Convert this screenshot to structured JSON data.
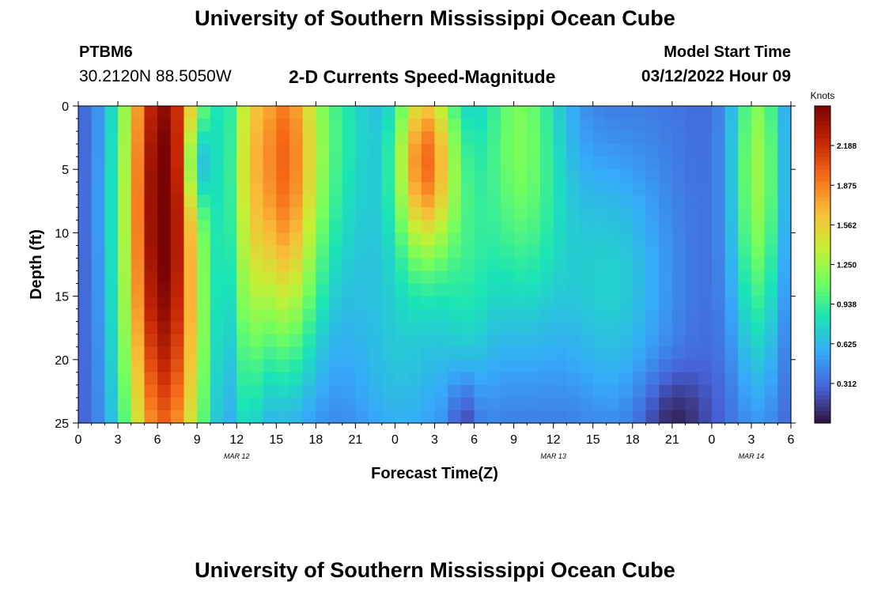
{
  "header": {
    "title": "University of Southern Mississippi Ocean Cube",
    "station_id": "PTBM6",
    "coordinates": "30.2120N  88.5050W",
    "subtitle": "2-D Currents Speed-Magnitude",
    "model_start_label": "Model Start Time",
    "model_start_value": "03/12/2022 Hour 09"
  },
  "footer": {
    "title": "University of Southern Mississippi Ocean Cube"
  },
  "chart_data": {
    "type": "heatmap",
    "title": "2-D Currents Speed-Magnitude",
    "xlabel": "Forecast Time(Z)",
    "ylabel": "Depth (ft)",
    "xlim": [
      0,
      54
    ],
    "ylim": [
      0,
      25
    ],
    "y_inverted": true,
    "x_ticks": [
      0,
      3,
      6,
      9,
      12,
      15,
      18,
      21,
      24,
      27,
      30,
      33,
      36,
      39,
      42,
      45,
      48,
      51,
      54
    ],
    "x_tick_labels": [
      "0",
      "3",
      "6",
      "9",
      "12",
      "15",
      "18",
      "21",
      "0",
      "3",
      "6",
      "9",
      "12",
      "15",
      "18",
      "21",
      "0",
      "3",
      "6"
    ],
    "date_labels": [
      {
        "label": "MAR 12",
        "x": 12
      },
      {
        "label": "MAR 13",
        "x": 36
      },
      {
        "label": "MAR 14",
        "x": 51
      }
    ],
    "y_ticks": [
      0,
      5,
      10,
      15,
      20,
      25
    ],
    "y_tick_labels": [
      "0",
      "5",
      "10",
      "15",
      "20",
      "25"
    ],
    "colorbar": {
      "label": "Knots",
      "min": 0,
      "max": 2.5,
      "ticks": [
        0.312,
        0.625,
        0.938,
        1.25,
        1.562,
        1.875,
        2.188
      ],
      "tick_labels": [
        "0.312",
        "0.625",
        "0.938",
        "1.250",
        "1.562",
        "1.875",
        "2.188"
      ],
      "colormap": [
        "#30123b",
        "#4662d7",
        "#36aaf9",
        "#1ae4b6",
        "#72fe5e",
        "#c7ef34",
        "#fabb38",
        "#f66b19",
        "#c42503",
        "#7a0403"
      ]
    },
    "features": [
      {
        "x": 6.5,
        "depth": 8,
        "sx": 2.4,
        "sd": 22,
        "peak": 2.35
      },
      {
        "x": 15.5,
        "depth": 4,
        "sx": 2.2,
        "sd": 12,
        "peak": 1.7
      },
      {
        "x": 26.3,
        "depth": 4,
        "sx": 1.7,
        "sd": 6,
        "peak": 1.6
      },
      {
        "x": 33.5,
        "depth": 2,
        "sx": 2.5,
        "sd": 12,
        "peak": 0.9
      },
      {
        "x": 51.5,
        "depth": 5,
        "sx": 1.5,
        "sd": 12,
        "peak": 1.0
      },
      {
        "x": 22.5,
        "depth": 15,
        "sx": 5,
        "sd": 12,
        "peak": 0.1
      },
      {
        "x": 24.5,
        "depth": 20,
        "sx": 3,
        "sd": 8,
        "peak": 0.35
      },
      {
        "x": 44.5,
        "depth": 12,
        "sx": 3.5,
        "sd": 30,
        "peak": 0.12
      },
      {
        "x": 20.5,
        "depth": 0,
        "sx": 2,
        "sd": 10,
        "peak": 0.45
      },
      {
        "x": 12.8,
        "depth": 8,
        "sx": 0.8,
        "sd": 25,
        "peak": 0.45
      },
      {
        "x": 29.5,
        "depth": 14,
        "sx": 1.5,
        "sd": 8,
        "peak": 0.35
      },
      {
        "x": 40,
        "depth": 14,
        "sx": 3,
        "sd": 8,
        "peak": 0.45
      }
    ],
    "troughs": [
      {
        "x": 9,
        "depth": 4.5,
        "sx": 0.7,
        "sd": 2.5,
        "depth_value": 0.55
      },
      {
        "x": 9,
        "depth": 7,
        "sx": 1.0,
        "sd": 7,
        "depth_value": 0.25
      },
      {
        "x": 29.2,
        "depth": 25,
        "sx": 0.8,
        "sd": 3,
        "depth_value": 0.3
      },
      {
        "x": 45,
        "depth": 25,
        "sx": 1.8,
        "sd": 3,
        "depth_value": 0.3
      }
    ],
    "base_speed": 0.22,
    "grid": {
      "nx": 54,
      "nz": 25
    }
  }
}
